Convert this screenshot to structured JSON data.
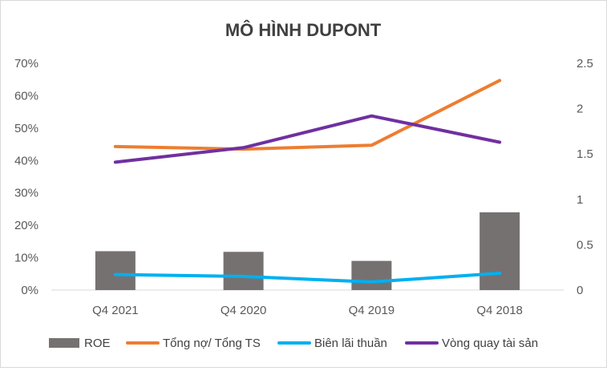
{
  "chart_data": {
    "type": "bar",
    "title": "MÔ HÌNH DUPONT",
    "categories": [
      "Q4 2021",
      "Q4 2020",
      "Q4 2019",
      "Q4 2018"
    ],
    "y_left": {
      "ticks": [
        "0%",
        "10%",
        "20%",
        "30%",
        "40%",
        "50%",
        "60%",
        "70%"
      ],
      "ylim": [
        0,
        0.7
      ]
    },
    "y_right": {
      "ticks": [
        "0",
        "0.5",
        "1",
        "1.5",
        "2",
        "2.5"
      ],
      "ylim": [
        0,
        2.5
      ]
    },
    "series": [
      {
        "name": "ROE",
        "type": "bar",
        "axis": "left",
        "color": "#767171",
        "values": [
          0.12,
          0.118,
          0.09,
          0.24
        ]
      },
      {
        "name": "Tổng nợ/ Tổng TS",
        "type": "line",
        "axis": "left",
        "color": "#ED7D31",
        "values": [
          0.443,
          0.435,
          0.447,
          0.647
        ]
      },
      {
        "name": "Biên lãi thuần",
        "type": "line",
        "axis": "left",
        "color": "#00B0F0",
        "values": [
          0.048,
          0.042,
          0.025,
          0.052
        ]
      },
      {
        "name": "Vòng quay tài sản",
        "type": "line",
        "axis": "right",
        "color": "#7030A0",
        "values": [
          1.41,
          1.57,
          1.92,
          1.63
        ]
      }
    ],
    "grid": false,
    "legend_position": "bottom"
  }
}
